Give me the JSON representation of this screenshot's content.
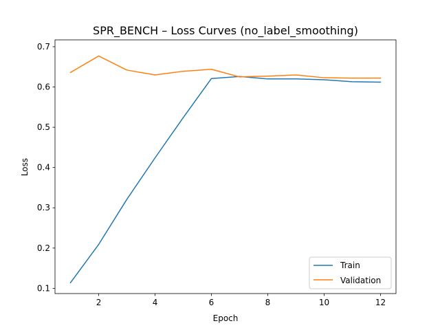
{
  "chart_data": {
    "type": "line",
    "title": "SPR_BENCH – Loss Curves (no_label_smoothing)",
    "xlabel": "Epoch",
    "ylabel": "Loss",
    "x": [
      1,
      2,
      3,
      4,
      5,
      6,
      7,
      8,
      9,
      10,
      11,
      12
    ],
    "xlim": [
      0.45,
      12.55
    ],
    "ylim": [
      0.087,
      0.717
    ],
    "xticks": [
      2,
      4,
      6,
      8,
      10,
      12
    ],
    "yticks": [
      0.1,
      0.2,
      0.3,
      0.4,
      0.5,
      0.6,
      0.7
    ],
    "xtick_labels": [
      "2",
      "4",
      "6",
      "8",
      "10",
      "12"
    ],
    "ytick_labels": [
      "0.1",
      "0.2",
      "0.3",
      "0.4",
      "0.5",
      "0.6",
      "0.7"
    ],
    "grid": false,
    "legend_position": "lower-right",
    "series": [
      {
        "name": "Train",
        "color": "#1f77b4",
        "values": [
          0.114,
          0.209,
          0.321,
          0.424,
          0.524,
          0.621,
          0.626,
          0.62,
          0.62,
          0.618,
          0.613,
          0.612
        ]
      },
      {
        "name": "Validation",
        "color": "#ff7f0e",
        "values": [
          0.636,
          0.677,
          0.642,
          0.63,
          0.639,
          0.644,
          0.625,
          0.627,
          0.63,
          0.623,
          0.622,
          0.622
        ]
      }
    ]
  }
}
